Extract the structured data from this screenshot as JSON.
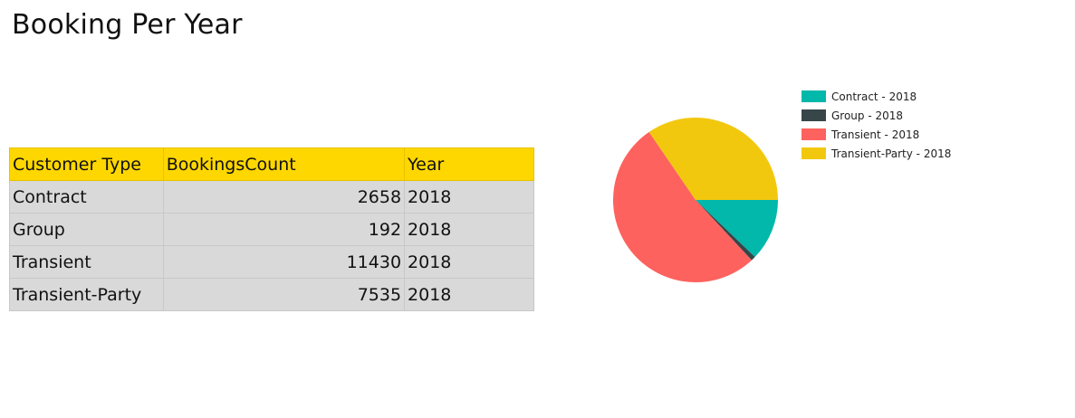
{
  "page": {
    "title": "Booking Per Year"
  },
  "table": {
    "headers": [
      "Customer Type",
      "BookingsCount",
      "Year"
    ],
    "rows": [
      [
        "Contract",
        "2658",
        "2018"
      ],
      [
        "Group",
        "192",
        "2018"
      ],
      [
        "Transient",
        "11430",
        "2018"
      ],
      [
        "Transient-Party",
        "7535",
        "2018"
      ]
    ]
  },
  "chart_data": {
    "type": "pie",
    "title": "",
    "categories": [
      "Contract - 2018",
      "Group - 2018",
      "Transient - 2018",
      "Transient-Party - 2018"
    ],
    "values": [
      2658,
      192,
      11430,
      7535
    ],
    "colors": [
      "#01b8aa",
      "#374649",
      "#fd625e",
      "#f2c80f"
    ],
    "legend_placement": "top-right"
  }
}
